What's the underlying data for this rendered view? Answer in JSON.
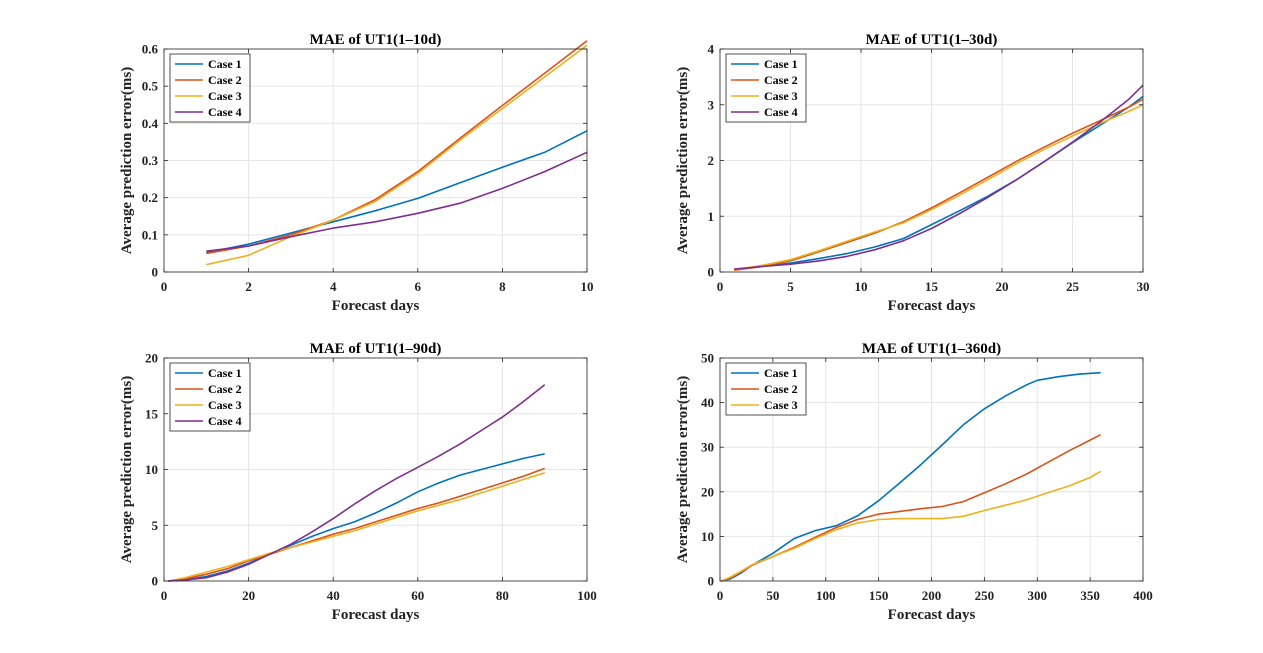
{
  "chart_data": [
    {
      "type": "line",
      "title": "MAE of UT1(1–10d)",
      "xlabel": "Forecast days",
      "ylabel": "Average prediction error(ms)",
      "xlim": [
        0,
        10
      ],
      "ylim": [
        0,
        0.6
      ],
      "xticks": [
        "0",
        "2",
        "4",
        "6",
        "8",
        "10"
      ],
      "yticks": [
        "0",
        "0.1",
        "0.2",
        "0.3",
        "0.4",
        "0.5",
        "0.6"
      ],
      "grid": true,
      "legend_position": "top-left",
      "series": [
        {
          "name": "Case 1",
          "color": "#0072BD",
          "x": [
            1,
            2,
            3,
            4,
            5,
            6,
            7,
            8,
            9,
            10
          ],
          "y": [
            0.052,
            0.075,
            0.105,
            0.135,
            0.165,
            0.198,
            0.24,
            0.282,
            0.322,
            0.38
          ]
        },
        {
          "name": "Case 2",
          "color": "#D95319",
          "x": [
            1,
            2,
            3,
            4,
            5,
            6,
            7,
            8,
            9,
            10
          ],
          "y": [
            0.05,
            0.07,
            0.1,
            0.14,
            0.195,
            0.27,
            0.36,
            0.448,
            0.535,
            0.622
          ]
        },
        {
          "name": "Case 3",
          "color": "#EDB120",
          "x": [
            1,
            2,
            3,
            4,
            5,
            6,
            7,
            8,
            9,
            10
          ],
          "y": [
            0.02,
            0.045,
            0.095,
            0.14,
            0.19,
            0.265,
            0.355,
            0.44,
            0.525,
            0.61
          ]
        },
        {
          "name": "Case 4",
          "color": "#7E2F8E",
          "x": [
            1,
            2,
            3,
            4,
            5,
            6,
            7,
            8,
            9,
            10
          ],
          "y": [
            0.056,
            0.07,
            0.095,
            0.118,
            0.135,
            0.158,
            0.185,
            0.225,
            0.27,
            0.322
          ]
        }
      ]
    },
    {
      "type": "line",
      "title": "MAE of UT1(1–30d)",
      "xlabel": "Forecast days",
      "ylabel": "Average prediction error(ms)",
      "xlim": [
        0,
        30
      ],
      "ylim": [
        0,
        4
      ],
      "xticks": [
        "0",
        "5",
        "10",
        "15",
        "20",
        "25",
        "30"
      ],
      "yticks": [
        "0",
        "1",
        "2",
        "3",
        "4"
      ],
      "grid": true,
      "legend_position": "top-left",
      "series": [
        {
          "name": "Case 1",
          "color": "#0072BD",
          "x": [
            1,
            3,
            5,
            7,
            9,
            11,
            13,
            15,
            17,
            19,
            21,
            23,
            25,
            27,
            29,
            30
          ],
          "y": [
            0.05,
            0.1,
            0.16,
            0.24,
            0.33,
            0.45,
            0.6,
            0.85,
            1.1,
            1.36,
            1.65,
            1.98,
            2.32,
            2.64,
            2.96,
            3.15
          ]
        },
        {
          "name": "Case 2",
          "color": "#D95319",
          "x": [
            1,
            3,
            5,
            7,
            9,
            11,
            13,
            15,
            17,
            19,
            21,
            23,
            25,
            27,
            29,
            30
          ],
          "y": [
            0.03,
            0.1,
            0.2,
            0.36,
            0.53,
            0.7,
            0.9,
            1.15,
            1.42,
            1.7,
            1.98,
            2.24,
            2.49,
            2.72,
            2.96,
            3.1
          ]
        },
        {
          "name": "Case 3",
          "color": "#EDB120",
          "x": [
            1,
            3,
            5,
            7,
            9,
            11,
            13,
            15,
            17,
            19,
            21,
            23,
            25,
            27,
            29,
            30
          ],
          "y": [
            0.04,
            0.12,
            0.22,
            0.38,
            0.55,
            0.72,
            0.88,
            1.12,
            1.38,
            1.66,
            1.94,
            2.2,
            2.44,
            2.67,
            2.88,
            3.0
          ]
        },
        {
          "name": "Case 4",
          "color": "#7E2F8E",
          "x": [
            1,
            3,
            5,
            7,
            9,
            11,
            13,
            15,
            17,
            19,
            21,
            23,
            25,
            27,
            29,
            30
          ],
          "y": [
            0.05,
            0.1,
            0.14,
            0.2,
            0.28,
            0.4,
            0.56,
            0.78,
            1.05,
            1.34,
            1.65,
            1.98,
            2.33,
            2.7,
            3.1,
            3.35
          ]
        }
      ]
    },
    {
      "type": "line",
      "title": "MAE of UT1(1–90d)",
      "xlabel": "Forecast days",
      "ylabel": "Average prediction error(ms)",
      "xlim": [
        0,
        100
      ],
      "ylim": [
        0,
        20
      ],
      "xticks": [
        "0",
        "20",
        "40",
        "60",
        "80",
        "100"
      ],
      "yticks": [
        "0",
        "5",
        "10",
        "15",
        "20"
      ],
      "grid": true,
      "legend_position": "top-left",
      "series": [
        {
          "name": "Case 1",
          "color": "#0072BD",
          "x": [
            1,
            5,
            10,
            15,
            20,
            25,
            30,
            35,
            40,
            45,
            50,
            55,
            60,
            65,
            70,
            75,
            80,
            85,
            90
          ],
          "y": [
            0,
            0.1,
            0.4,
            0.9,
            1.6,
            2.4,
            3.2,
            4.0,
            4.7,
            5.3,
            6.1,
            7.0,
            8.0,
            8.8,
            9.5,
            10.0,
            10.5,
            11.0,
            11.4
          ]
        },
        {
          "name": "Case 2",
          "color": "#D95319",
          "x": [
            1,
            5,
            10,
            15,
            20,
            25,
            30,
            35,
            40,
            45,
            50,
            55,
            60,
            65,
            70,
            75,
            80,
            85,
            90
          ],
          "y": [
            0,
            0.2,
            0.6,
            1.1,
            1.8,
            2.4,
            3.0,
            3.6,
            4.2,
            4.7,
            5.3,
            5.9,
            6.5,
            7.0,
            7.6,
            8.2,
            8.8,
            9.4,
            10.1
          ]
        },
        {
          "name": "Case 3",
          "color": "#EDB120",
          "x": [
            1,
            5,
            10,
            15,
            20,
            25,
            30,
            35,
            40,
            45,
            50,
            55,
            60,
            65,
            70,
            75,
            80,
            85,
            90
          ],
          "y": [
            0,
            0.3,
            0.8,
            1.3,
            1.9,
            2.5,
            3.0,
            3.5,
            4.0,
            4.5,
            5.1,
            5.7,
            6.3,
            6.8,
            7.3,
            7.9,
            8.5,
            9.1,
            9.7
          ]
        },
        {
          "name": "Case 4",
          "color": "#7E2F8E",
          "x": [
            1,
            5,
            10,
            15,
            20,
            25,
            30,
            35,
            40,
            45,
            50,
            55,
            60,
            65,
            70,
            75,
            80,
            85,
            90
          ],
          "y": [
            0,
            0.1,
            0.3,
            0.8,
            1.5,
            2.4,
            3.3,
            4.4,
            5.6,
            6.9,
            8.1,
            9.2,
            10.2,
            11.2,
            12.3,
            13.5,
            14.7,
            16.1,
            17.6
          ]
        }
      ]
    },
    {
      "type": "line",
      "title": "MAE of UT1(1–360d)",
      "xlabel": "Forecast days",
      "ylabel": "Average prediction error(ms)",
      "xlim": [
        0,
        400
      ],
      "ylim": [
        0,
        50
      ],
      "xticks": [
        "0",
        "50",
        "100",
        "150",
        "200",
        "250",
        "300",
        "350",
        "400"
      ],
      "yticks": [
        "0",
        "10",
        "20",
        "30",
        "40",
        "50"
      ],
      "grid": true,
      "legend_position": "top-left",
      "series": [
        {
          "name": "Case 1",
          "color": "#0072BD",
          "x": [
            1,
            10,
            20,
            30,
            50,
            70,
            90,
            110,
            130,
            150,
            170,
            190,
            210,
            230,
            250,
            270,
            290,
            300,
            320,
            340,
            360
          ],
          "y": [
            0,
            0.5,
            1.8,
            3.5,
            6.2,
            9.5,
            11.3,
            12.4,
            14.6,
            18.0,
            22.0,
            26.1,
            30.5,
            35.0,
            38.6,
            41.5,
            44.0,
            45.0,
            45.8,
            46.4,
            46.7
          ]
        },
        {
          "name": "Case 2",
          "color": "#D95319",
          "x": [
            1,
            10,
            20,
            30,
            50,
            70,
            90,
            110,
            130,
            150,
            170,
            190,
            210,
            230,
            250,
            270,
            290,
            310,
            330,
            350,
            360
          ],
          "y": [
            0,
            0.7,
            2.0,
            3.5,
            5.5,
            7.5,
            9.8,
            12.0,
            13.8,
            15.0,
            15.6,
            16.2,
            16.7,
            17.8,
            19.8,
            21.8,
            24.0,
            26.6,
            29.2,
            31.6,
            32.8
          ]
        },
        {
          "name": "Case 3",
          "color": "#EDB120",
          "x": [
            1,
            10,
            20,
            30,
            50,
            70,
            90,
            110,
            130,
            150,
            170,
            190,
            210,
            230,
            250,
            270,
            290,
            310,
            330,
            350,
            360
          ],
          "y": [
            0,
            0.9,
            2.2,
            3.6,
            5.5,
            7.3,
            9.5,
            11.5,
            13.0,
            13.8,
            14.0,
            14.0,
            14.0,
            14.5,
            15.8,
            17.0,
            18.2,
            19.8,
            21.3,
            23.2,
            24.6
          ]
        }
      ]
    }
  ]
}
